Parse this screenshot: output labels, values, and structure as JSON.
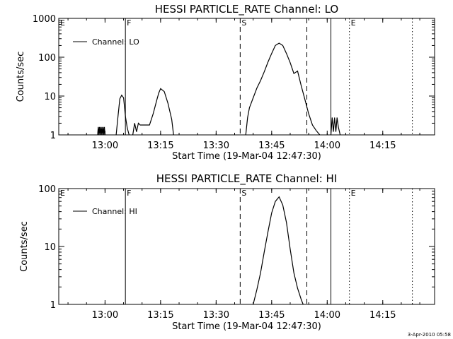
{
  "stamp": "3-Apr-2010 05:58",
  "chart_data": [
    {
      "type": "line",
      "title": "HESSI PARTICLE_RATE Channel: LO",
      "xlabel": "Start Time (19-Mar-04 12:47:30)",
      "ylabel": "Counts/sec",
      "yscale": "log",
      "ylim": [
        1,
        1000
      ],
      "yticks": [
        1,
        10,
        100,
        1000
      ],
      "ytick_labels": [
        "1",
        "10",
        "100",
        "1000"
      ],
      "xlim": [
        "12:47:30",
        "14:29:00"
      ],
      "xticks": [
        "13:00",
        "13:15",
        "13:30",
        "13:45",
        "14:00",
        "14:15"
      ],
      "legend": {
        "label": "Channel: LO",
        "placement": "top-left"
      },
      "markers": [
        {
          "label": "E",
          "time": "12:47:30",
          "style": "solid"
        },
        {
          "label": "F",
          "time": "13:05:30",
          "style": "solid"
        },
        {
          "label": "S",
          "time": "13:36:30",
          "style": "dashed"
        },
        {
          "label": "",
          "time": "13:54:30",
          "style": "dashed"
        },
        {
          "label": "",
          "time": "14:01:00",
          "style": "solid"
        },
        {
          "label": "E",
          "time": "14:06:00",
          "style": "dotted"
        },
        {
          "label": "",
          "time": "14:23:00",
          "style": "dotted"
        }
      ],
      "series": [
        {
          "name": "Channel: LO",
          "segments": [
            {
              "x": [
                "12:58:00",
                "12:58:10",
                "12:58:20",
                "12:58:30",
                "12:58:40",
                "12:58:50",
                "12:59:00",
                "12:59:10",
                "12:59:20",
                "12:59:30",
                "12:59:40",
                "12:59:50",
                "13:00:00"
              ],
              "y": [
                1,
                1.6,
                1,
                1.6,
                1,
                1.6,
                1,
                1.6,
                1,
                1.6,
                1,
                1.6,
                1
              ]
            },
            {
              "x": [
                "13:03:00",
                "13:03:30",
                "13:04:00",
                "13:04:30",
                "13:05:00",
                "13:05:30",
                "13:06:00",
                "13:06:30"
              ],
              "y": [
                1,
                3,
                8.5,
                10.5,
                9,
                3,
                1.5,
                1
              ]
            },
            {
              "x": [
                "13:07:30",
                "13:08:00",
                "13:08:30",
                "13:09:00",
                "13:09:30",
                "13:10:00",
                "13:11:00",
                "13:12:00",
                "13:13:00",
                "13:14:00",
                "13:14:30",
                "13:15:00",
                "13:16:00",
                "13:17:00",
                "13:18:00",
                "13:18:30"
              ],
              "y": [
                1,
                2,
                1.2,
                2,
                1.8,
                1.8,
                1.8,
                1.8,
                3.5,
                8,
                12,
                15.5,
                13,
                6.5,
                2.5,
                1
              ]
            },
            {
              "x": [
                "13:38:00",
                "13:38:30",
                "13:39:00",
                "13:40:00",
                "13:41:00",
                "13:42:00",
                "13:43:00",
                "13:44:00",
                "13:45:00",
                "13:46:00",
                "13:47:00",
                "13:48:00",
                "13:49:00",
                "13:50:00",
                "13:51:00",
                "13:52:00",
                "13:53:00",
                "13:54:00",
                "13:55:00",
                "13:56:00",
                "13:57:00",
                "13:58:00"
              ],
              "y": [
                1,
                2.8,
                5,
                9,
                16,
                25,
                42,
                75,
                125,
                200,
                230,
                200,
                125,
                72,
                38,
                44,
                18,
                8,
                3.5,
                1.8,
                1.3,
                1
              ]
            },
            {
              "x": [
                "14:01:00",
                "14:01:20",
                "14:01:40",
                "14:02:00",
                "14:02:20",
                "14:02:40",
                "14:03:00",
                "14:03:30"
              ],
              "y": [
                1,
                2.8,
                1.2,
                2.8,
                1.2,
                2.8,
                1.6,
                1
              ]
            }
          ]
        }
      ]
    },
    {
      "type": "line",
      "title": "HESSI PARTICLE_RATE Channel: HI",
      "xlabel": "Start Time (19-Mar-04 12:47:30)",
      "ylabel": "Counts/sec",
      "yscale": "log",
      "ylim": [
        1,
        100
      ],
      "yticks": [
        1,
        10,
        100
      ],
      "ytick_labels": [
        "1",
        "10",
        "100"
      ],
      "xlim": [
        "12:47:30",
        "14:29:00"
      ],
      "xticks": [
        "13:00",
        "13:15",
        "13:30",
        "13:45",
        "14:00",
        "14:15"
      ],
      "legend": {
        "label": "Channel: HI",
        "placement": "top-left"
      },
      "markers": [
        {
          "label": "E",
          "time": "12:47:30",
          "style": "solid"
        },
        {
          "label": "F",
          "time": "13:05:30",
          "style": "solid"
        },
        {
          "label": "S",
          "time": "13:36:30",
          "style": "dashed"
        },
        {
          "label": "",
          "time": "13:54:30",
          "style": "dashed"
        },
        {
          "label": "",
          "time": "14:01:00",
          "style": "solid"
        },
        {
          "label": "E",
          "time": "14:06:00",
          "style": "dotted"
        },
        {
          "label": "",
          "time": "14:23:00",
          "style": "dotted"
        }
      ],
      "series": [
        {
          "name": "Channel: HI",
          "segments": [
            {
              "x": [
                "13:40:00",
                "13:41:00",
                "13:42:00",
                "13:43:00",
                "13:44:00",
                "13:45:00",
                "13:46:00",
                "13:47:00",
                "13:48:00",
                "13:49:00",
                "13:50:00",
                "13:51:00",
                "13:52:00",
                "13:53:00",
                "13:53:30"
              ],
              "y": [
                1,
                1.8,
                3.5,
                8,
                18,
                38,
                60,
                72,
                52,
                26,
                9,
                3.5,
                1.9,
                1.2,
                1
              ]
            }
          ]
        }
      ]
    }
  ]
}
